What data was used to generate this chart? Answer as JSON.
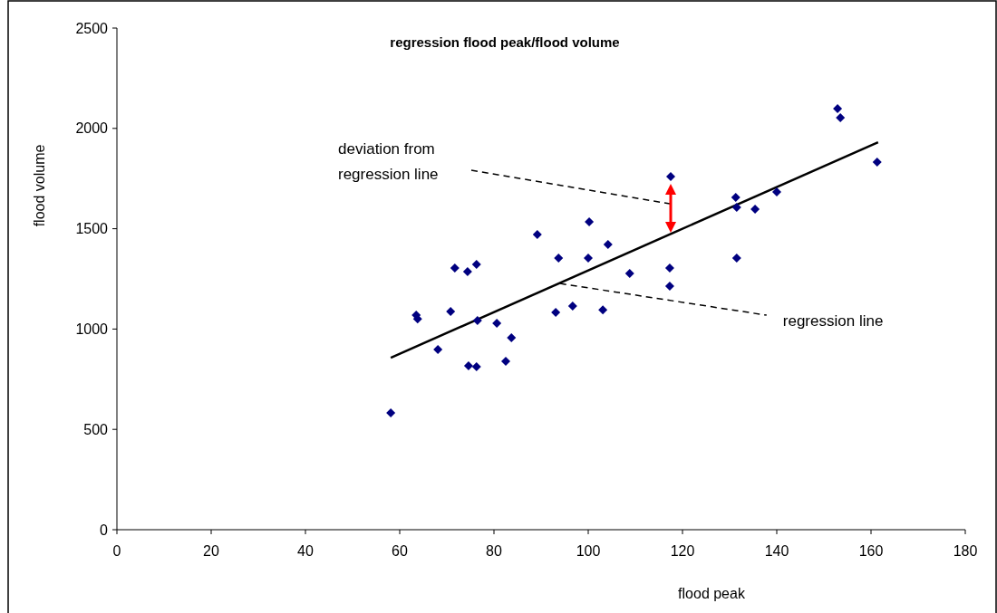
{
  "chart_data": {
    "type": "scatter",
    "title": "regression flood peak/flood volume",
    "xlabel": "flood peak",
    "ylabel": "flood volume",
    "xlim": [
      0,
      180
    ],
    "xticks": [
      0,
      20,
      40,
      60,
      80,
      100,
      120,
      140,
      160,
      180
    ],
    "ylim": [
      0,
      2500
    ],
    "yticks": [
      0,
      500,
      1000,
      1500,
      2000,
      2500
    ],
    "marker": "diamond",
    "grid": false,
    "series": [
      {
        "color": "#000080",
        "x": [
          58.1,
          63.5,
          63.8,
          68.1,
          70.8,
          71.7,
          74.4,
          76.3,
          74.6,
          76.3,
          76.5,
          80.6,
          82.5,
          83.7,
          89.2,
          93.7,
          93.1,
          96.7,
          100.2,
          100,
          103.1,
          104.2,
          108.8,
          117.5,
          117.3,
          117.3,
          131.3,
          131.5,
          131.5,
          135.4,
          140,
          152.9,
          153.5,
          161.3
        ],
        "values": [
          582,
          1070,
          1050,
          898,
          1088,
          1304,
          1286,
          1322,
          817,
          812,
          1042,
          1029,
          839,
          957,
          1471,
          1354,
          1083,
          1115,
          1534,
          1354,
          1095,
          1421,
          1277,
          1760,
          1304,
          1214,
          1656,
          1607,
          1354,
          1597,
          1683,
          2098,
          2053,
          1832
        ]
      },
      {
        "type": "line",
        "color": "#000000",
        "marker": "none",
        "line_style": "solid",
        "x": [
          58.1,
          161.5
        ],
        "values": [
          857,
          1931
        ]
      }
    ],
    "annotations": [
      "deviation from regression line",
      {
        "text": "regression line",
        "x": 94,
        "y": 1227
      }
    ]
  }
}
